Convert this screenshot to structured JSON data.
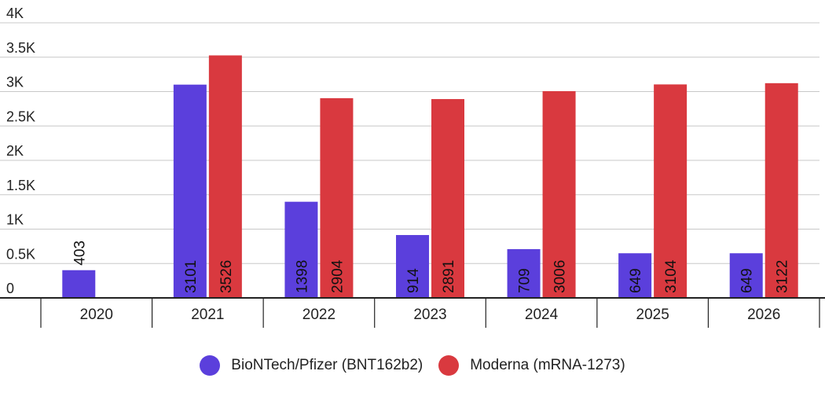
{
  "chart_data": {
    "type": "bar",
    "categories": [
      "2020",
      "2021",
      "2022",
      "2023",
      "2024",
      "2025",
      "2026"
    ],
    "series": [
      {
        "name": "BioNTech/Pfizer (BNT162b2)",
        "color": "#5b3fdc",
        "values": [
          403,
          3101,
          1398,
          914,
          709,
          649,
          649
        ]
      },
      {
        "name": "Moderna (mRNA-1273)",
        "color": "#d9393f",
        "values": [
          null,
          3526,
          2904,
          2891,
          3006,
          3104,
          3122
        ]
      }
    ],
    "data_labels": [
      [
        "403",
        "3101",
        "1398",
        "914",
        "709",
        "649",
        "649"
      ],
      [
        "",
        "3526",
        "2904",
        "2891",
        "3006",
        "3104",
        "3122"
      ]
    ],
    "yticks": [
      0,
      500,
      1000,
      1500,
      2000,
      2500,
      3000,
      3500,
      4000
    ],
    "ytick_labels": [
      "0",
      "0.5K",
      "1K",
      "1.5K",
      "2K",
      "2.5K",
      "3K",
      "3.5K",
      "4K"
    ],
    "ylim": [
      0,
      4000
    ],
    "grid": true,
    "legend_position": "bottom"
  }
}
